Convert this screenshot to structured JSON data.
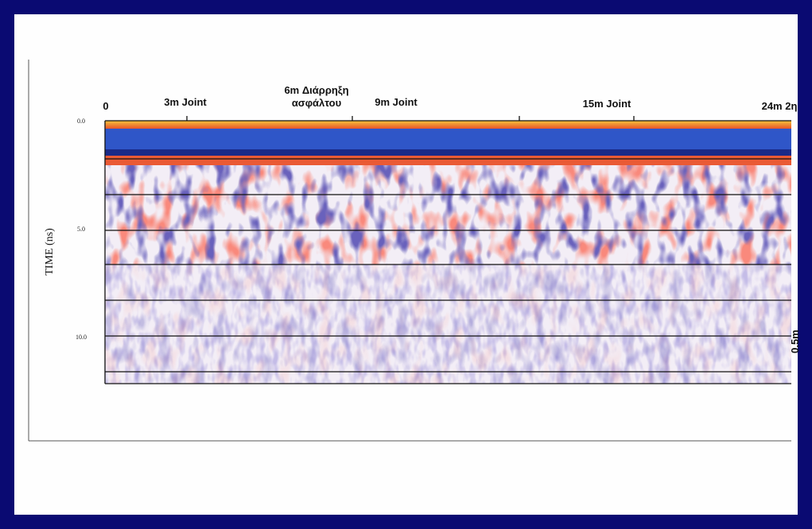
{
  "figure": {
    "distance_labels": [
      {
        "lines": [
          "0"
        ]
      },
      {
        "lines": [
          "3m Joint"
        ]
      },
      {
        "lines": [
          "6m Διάρρηξη",
          "ασφάλτου"
        ]
      },
      {
        "lines": [
          "9m Joint"
        ]
      },
      {
        "lines": [
          "15m Joint"
        ]
      },
      {
        "lines": [
          "24m 2η"
        ]
      }
    ],
    "y_axis_label": "TIME (ns)",
    "y_tick_labels": [
      "0.0",
      "5.0",
      "10.0"
    ],
    "depth_label": "0.5m"
  }
}
